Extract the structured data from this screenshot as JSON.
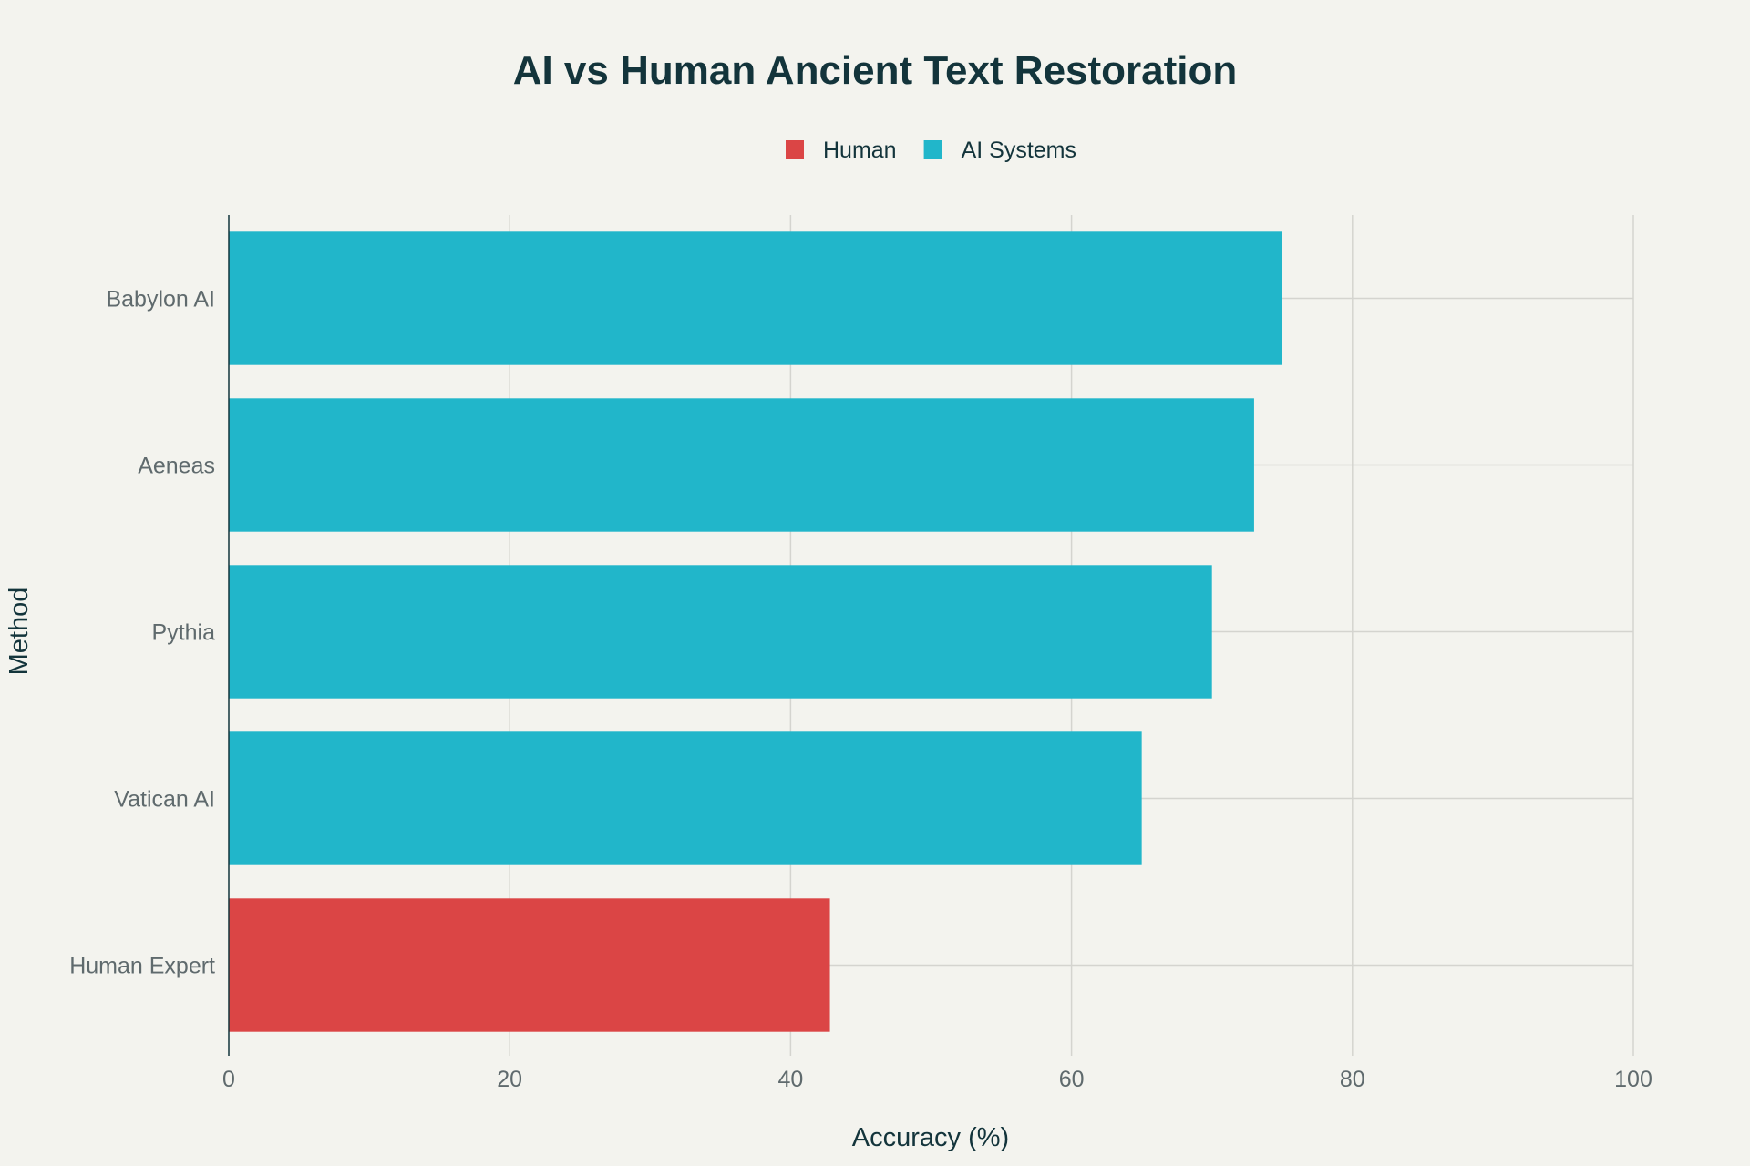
{
  "chart_data": {
    "type": "bar",
    "orientation": "horizontal",
    "title": "AI vs Human Ancient Text Restoration",
    "xlabel": "Accuracy (%)",
    "ylabel": "Method",
    "xlim": [
      0,
      100
    ],
    "xticks": [
      0,
      20,
      40,
      60,
      80,
      100
    ],
    "grid": true,
    "legend": {
      "position": "top-center",
      "entries": [
        {
          "name": "Human",
          "color": "#db4545"
        },
        {
          "name": "AI Systems",
          "color": "#21b6ca"
        }
      ]
    },
    "categories": [
      "Babylon AI",
      "Aeneas",
      "Pythia",
      "Vatican AI",
      "Human Expert"
    ],
    "values": [
      75,
      73,
      70,
      65,
      42.8
    ],
    "groups": [
      "AI Systems",
      "AI Systems",
      "AI Systems",
      "AI Systems",
      "Human"
    ]
  }
}
